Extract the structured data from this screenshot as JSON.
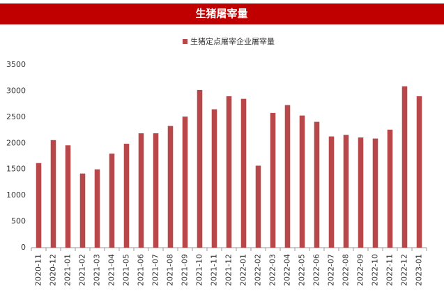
{
  "chart_data": {
    "type": "bar",
    "title": "生猪屠宰量",
    "categories": [
      "2020-11",
      "2020-12",
      "2021-01",
      "2021-02",
      "2021-03",
      "2021-04",
      "2021-05",
      "2021-06",
      "2021-07",
      "2021-08",
      "2021-09",
      "2021-10",
      "2021-11",
      "2021-12",
      "2022-01",
      "2022-02",
      "2022-03",
      "2022-04",
      "2022-05",
      "2022-06",
      "2022-07",
      "2022-08",
      "2022-09",
      "2022-10",
      "2022-11",
      "2022-12",
      "2023-01"
    ],
    "series": [
      {
        "name": "生猪定点屠宰企业屠宰量",
        "color": "#b8474a",
        "values": [
          1620,
          2060,
          1960,
          1420,
          1500,
          1800,
          1990,
          2190,
          2190,
          2330,
          2510,
          3020,
          2650,
          2900,
          2850,
          1570,
          2580,
          2730,
          2530,
          2410,
          2130,
          2160,
          2110,
          2090,
          2260,
          3090,
          2900
        ]
      }
    ],
    "ylim": [
      0,
      3500
    ],
    "yticks": [
      0,
      500,
      1000,
      1500,
      2000,
      2500,
      3000,
      3500
    ],
    "legend": "top"
  }
}
